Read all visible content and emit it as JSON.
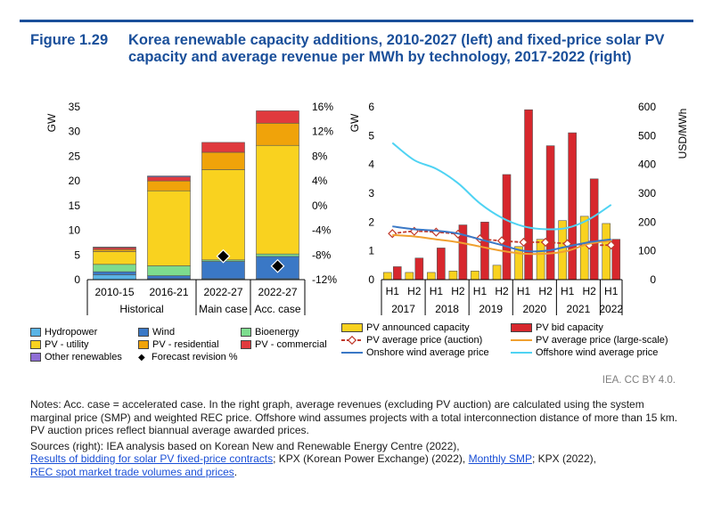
{
  "title": {
    "figure_label": "Figure 1.29",
    "text": "Korea renewable capacity additions, 2010-2027 (left) and fixed-price solar PV capacity and average revenue per MWh by technology, 2017-2022 (right)"
  },
  "colors": {
    "hydropower": "#5ab4e5",
    "wind": "#3a78c6",
    "bioenergy": "#7ddc8e",
    "pv_utility": "#f9d21f",
    "pv_residential": "#f0a30a",
    "pv_commercial": "#e03a3e",
    "other": "#8f6ed5",
    "pv_announced": "#f9d21f",
    "pv_bid": "#d7272d",
    "pv_auction_price": "#c0392b",
    "pv_large_price": "#f0a030",
    "onshore": "#3a78c6",
    "offshore": "#4fd3f3"
  },
  "chart_data": [
    {
      "type": "bar",
      "stacked": true,
      "categories": [
        "2010-15",
        "2016-21",
        "2022-27",
        "2022-27"
      ],
      "groups": [
        "Historical",
        "Main case",
        "Acc. case"
      ],
      "group_spans": [
        2,
        1,
        1
      ],
      "ylabel": "GW",
      "ylim": [
        0,
        35
      ],
      "yticks": [
        "0",
        "5",
        "10",
        "15",
        "20",
        "25",
        "30",
        "35"
      ],
      "y2lim": [
        -12,
        16
      ],
      "y2ticks": [
        "-12%",
        "-8%",
        "-4%",
        "0%",
        "4%",
        "8%",
        "12%",
        "16%"
      ],
      "series": [
        {
          "name": "Hydropower",
          "key": "hydropower",
          "values": [
            1.0,
            0.2,
            0.2,
            0.2
          ]
        },
        {
          "name": "Wind",
          "key": "wind",
          "values": [
            0.6,
            0.6,
            3.5,
            4.5
          ]
        },
        {
          "name": "Bioenergy",
          "key": "bioenergy",
          "values": [
            1.5,
            2.0,
            0.3,
            0.5
          ]
        },
        {
          "name": "PV - utility",
          "key": "pv_utility",
          "values": [
            2.6,
            15.2,
            18.3,
            22.0
          ]
        },
        {
          "name": "PV - residential",
          "key": "pv_residential",
          "values": [
            0.4,
            2.0,
            3.5,
            4.5
          ]
        },
        {
          "name": "PV - commercial",
          "key": "pv_commercial",
          "values": [
            0.4,
            0.8,
            2.0,
            2.5
          ]
        },
        {
          "name": "Other renewables",
          "key": "other",
          "values": [
            0.1,
            0.2,
            0.0,
            0.0
          ]
        }
      ],
      "forecast_revision": {
        "name": "Forecast revision %",
        "values": [
          null,
          null,
          -8.2,
          -9.8
        ]
      }
    },
    {
      "type": "bar",
      "categories": [
        "H1",
        "H2",
        "H1",
        "H2",
        "H1",
        "H2",
        "H1",
        "H2",
        "H1",
        "H2",
        "H1"
      ],
      "years": [
        "2017",
        "2018",
        "2019",
        "2020",
        "2021",
        "2022"
      ],
      "ylabel": "GW",
      "ylim": [
        0,
        6
      ],
      "yticks": [
        "0",
        "1",
        "2",
        "3",
        "4",
        "5",
        "6"
      ],
      "y2label": "USD/MWh",
      "y2lim": [
        0,
        600
      ],
      "y2ticks": [
        "0",
        "100",
        "200",
        "300",
        "400",
        "500",
        "600"
      ],
      "series": [
        {
          "name": "PV announced capacity",
          "key": "pv_announced",
          "axis": "left",
          "kind": "bar",
          "values": [
            0.25,
            0.25,
            0.25,
            0.3,
            0.3,
            0.5,
            1.15,
            1.4,
            2.05,
            2.2,
            1.95
          ]
        },
        {
          "name": "PV bid capacity",
          "key": "pv_bid",
          "axis": "left",
          "kind": "bar",
          "values": [
            0.45,
            0.75,
            1.1,
            1.9,
            2.0,
            3.65,
            5.9,
            4.65,
            5.1,
            3.5,
            1.4
          ]
        },
        {
          "name": "PV average price (auction)",
          "key": "pv_auction_price",
          "axis": "right",
          "kind": "line-marker",
          "values": [
            160,
            168,
            165,
            158,
            142,
            135,
            130,
            130,
            125,
            120,
            120
          ]
        },
        {
          "name": "PV average price (large-scale)",
          "key": "pv_large_price",
          "axis": "right",
          "kind": "line",
          "values": [
            155,
            150,
            140,
            130,
            115,
            100,
            90,
            90,
            100,
            125,
            135
          ]
        },
        {
          "name": "Onshore wind average price",
          "key": "onshore",
          "axis": "right",
          "kind": "line",
          "values": [
            185,
            175,
            170,
            160,
            140,
            120,
            100,
            100,
            115,
            130,
            140
          ]
        },
        {
          "name": "Offshore wind average price",
          "key": "offshore",
          "axis": "right",
          "kind": "line",
          "values": [
            475,
            415,
            385,
            335,
            265,
            215,
            185,
            175,
            180,
            210,
            260
          ]
        }
      ]
    }
  ],
  "credit": "IEA. CC BY 4.0.",
  "notes": {
    "notes_text": "Notes: Acc. case = accelerated case. In the right graph, average revenues (excluding PV auction) are calculated using the system marginal price (SMP) and weighted REC price. Offshore wind assumes projects with a total interconnection distance of more than 15 km. PV auction prices reflect biannual average awarded prices.",
    "sources_prefix": "Sources (right): IEA analysis based on Korean New and Renewable Energy Centre (2022),",
    "link1": "Results of bidding for solar PV fixed-price contracts",
    "mid_text": "; KPX (Korean Power Exchange) (2022),",
    "link2": "Monthly SMP",
    "after_link2": "; KPX (2022),",
    "link3": "REC spot market trade volumes and prices",
    "end": "."
  }
}
